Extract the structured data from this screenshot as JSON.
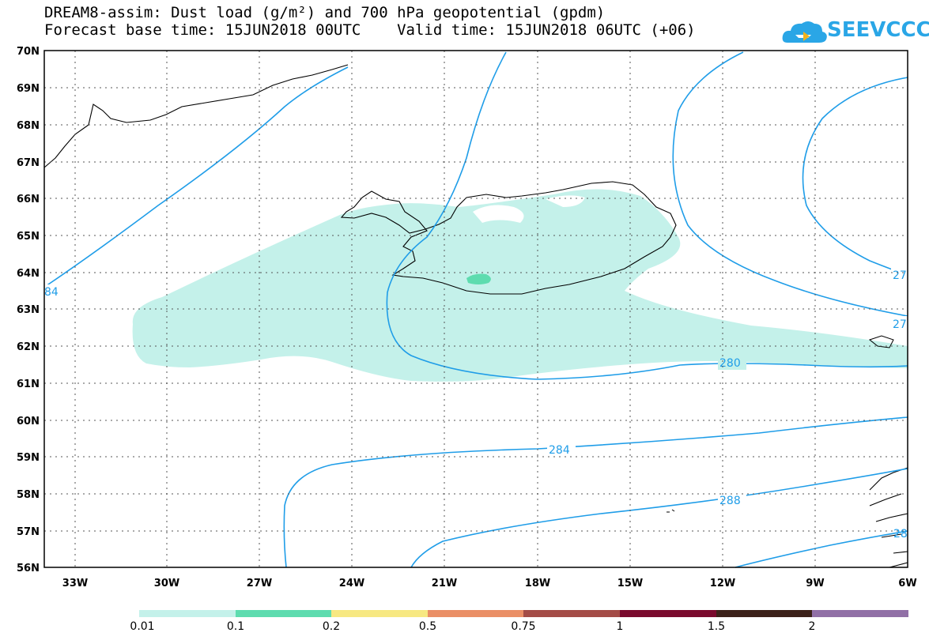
{
  "header": {
    "title_line1": "DREAM8-assim: Dust load (g/m²) and 700 hPa geopotential (gpdm)",
    "title_line2": "Forecast base time: 15JUN2018 00UTC    Valid time: 15JUN2018 06UTC (+06)",
    "logo_text": "SEEVCCC"
  },
  "map": {
    "lat_labels": [
      "70N",
      "69N",
      "68N",
      "67N",
      "66N",
      "65N",
      "64N",
      "63N",
      "62N",
      "61N",
      "60N",
      "59N",
      "58N",
      "57N",
      "56N"
    ],
    "lon_labels": [
      "33W",
      "30W",
      "27W",
      "24W",
      "21W",
      "18W",
      "15W",
      "12W",
      "9W",
      "6W"
    ],
    "contour_labels": [
      "280",
      "284",
      "288",
      "27",
      "27",
      "84",
      "28"
    ],
    "contour_color": "#1f9de8",
    "coast_color": "#000000"
  },
  "legend": {
    "labels": [
      "0.01",
      "0.1",
      "0.2",
      "0.5",
      "0.75",
      "1",
      "1.5",
      "2"
    ],
    "colors": [
      "#c4f1ea",
      "#5edcaf",
      "#f7e882",
      "#ea8f66",
      "#a44c47",
      "#7a0a2d",
      "#3c221a",
      "#9170a6"
    ]
  }
}
